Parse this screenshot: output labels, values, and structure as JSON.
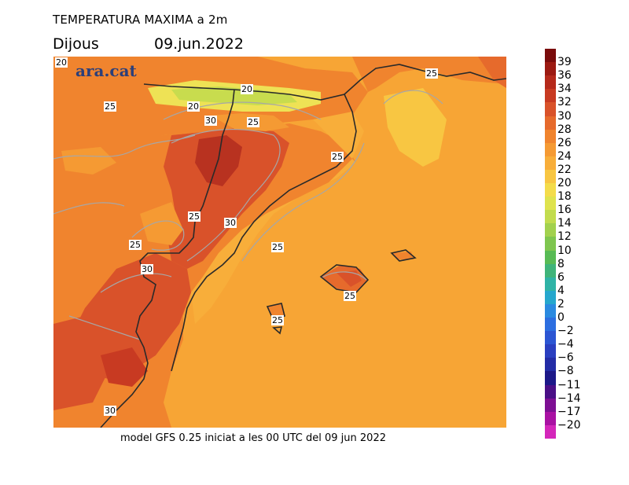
{
  "header": {
    "title": "TEMPERATURA MAXIMA a 2m",
    "day": "Dijous",
    "date": "09.jun.2022"
  },
  "footer": {
    "text": "model GFS 0.25 iniciat a les 00 UTC del 09 jun 2022"
  },
  "map": {
    "logo": "ara.cat",
    "contour_labels": [
      "20",
      "25",
      "20",
      "30",
      "20",
      "25",
      "25",
      "25",
      "25",
      "30",
      "25",
      "30",
      "25",
      "25",
      "25",
      "30"
    ],
    "colors": {
      "sea": "#f7a535",
      "warm_land": "#f07a2c",
      "hot_land": "#d9522a",
      "very_hot": "#b83220",
      "cool": "#f4b43e",
      "cold_mountain": "#c8dc4e",
      "mid_mountain": "#eee255",
      "coast": "#2a2a2a",
      "contour": "#a7a7a7"
    }
  },
  "legend": {
    "items": [
      {
        "label": "39",
        "color": "#7a0c0c"
      },
      {
        "label": "36",
        "color": "#9c1a12"
      },
      {
        "label": "34",
        "color": "#b5291b"
      },
      {
        "label": "32",
        "color": "#c83a22"
      },
      {
        "label": "30",
        "color": "#d9522a"
      },
      {
        "label": "28",
        "color": "#e66a2c"
      },
      {
        "label": "26",
        "color": "#f0842e"
      },
      {
        "label": "24",
        "color": "#f59a33"
      },
      {
        "label": "22",
        "color": "#f8ae3a"
      },
      {
        "label": "20",
        "color": "#f8c642"
      },
      {
        "label": "18",
        "color": "#f4dc4a"
      },
      {
        "label": "16",
        "color": "#dfe34d"
      },
      {
        "label": "14",
        "color": "#c2dc4e"
      },
      {
        "label": "12",
        "color": "#a2d14e"
      },
      {
        "label": "10",
        "color": "#7fc64f"
      },
      {
        "label": "8",
        "color": "#58bb55"
      },
      {
        "label": "6",
        "color": "#3fb47a"
      },
      {
        "label": "4",
        "color": "#2fb3a6"
      },
      {
        "label": "2",
        "color": "#25a7cd"
      },
      {
        "label": "0",
        "color": "#2a8ae0"
      },
      {
        "label": "−2",
        "color": "#2c6ee0"
      },
      {
        "label": "−4",
        "color": "#2b55d3"
      },
      {
        "label": "−6",
        "color": "#2a3fc0"
      },
      {
        "label": "−8",
        "color": "#232ca6"
      },
      {
        "label": "−11",
        "color": "#1c1888"
      },
      {
        "label": "−14",
        "color": "#4a0f86"
      },
      {
        "label": "−17",
        "color": "#7d0f93"
      },
      {
        "label": "−20",
        "color": "#a911a3"
      },
      {
        "label": "",
        "color": "#d426ba"
      }
    ]
  }
}
